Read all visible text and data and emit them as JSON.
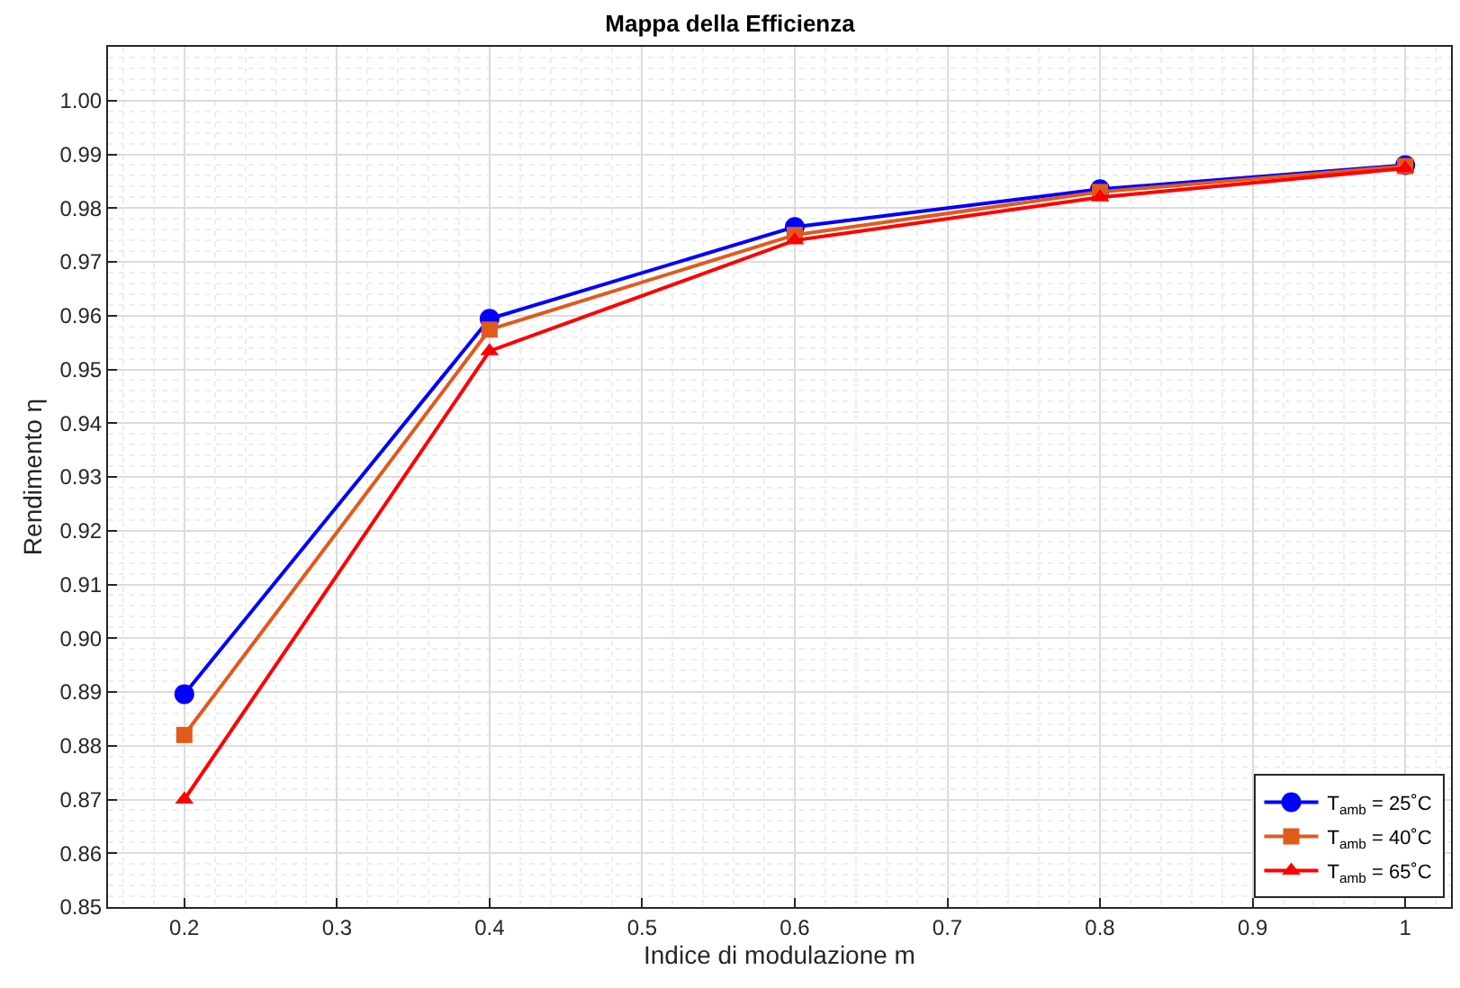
{
  "chart_data": {
    "type": "line",
    "title": "Mappa della Efficienza",
    "xlabel": "Indice di modulazione m",
    "ylabel": "Rendimento η",
    "x": [
      0.2,
      0.4,
      0.6,
      0.8,
      1.0
    ],
    "series": [
      {
        "name": "T$_{amb}$ = 25˚C",
        "color": "#0000ff",
        "marker": "circle",
        "values": [
          0.8896,
          0.9594,
          0.9765,
          0.9835,
          0.988
        ]
      },
      {
        "name": "T$_{amb}$ = 40˚C",
        "color": "#e05a1c",
        "marker": "square",
        "values": [
          0.882,
          0.9574,
          0.975,
          0.983,
          0.9878
        ]
      },
      {
        "name": "T$_{amb}$ = 65˚C",
        "color": "#ff0000",
        "marker": "triangle",
        "values": [
          0.87,
          0.9534,
          0.974,
          0.982,
          0.9874
        ]
      }
    ],
    "xlim": [
      0.15,
      1.03
    ],
    "xticks": [
      {
        "value": 0.2,
        "label": "0.2"
      },
      {
        "value": 0.3,
        "label": "0.3"
      },
      {
        "value": 0.4,
        "label": "0.4"
      },
      {
        "value": 0.5,
        "label": "0.5"
      },
      {
        "value": 0.6,
        "label": "0.6"
      },
      {
        "value": 0.7,
        "label": "0.7"
      },
      {
        "value": 0.8,
        "label": "0.8"
      },
      {
        "value": 0.9,
        "label": "0.9"
      },
      {
        "value": 1,
        "label": "1"
      }
    ],
    "ylim": [
      0.85,
      1.01
    ],
    "yticks": [
      {
        "value": 0.85,
        "label": "0.85"
      },
      {
        "value": 0.86,
        "label": "0.86"
      },
      {
        "value": 0.87,
        "label": "0.87"
      },
      {
        "value": 0.88,
        "label": "0.88"
      },
      {
        "value": 0.89,
        "label": "0.89"
      },
      {
        "value": 0.9,
        "label": "0.90"
      },
      {
        "value": 0.91,
        "label": "0.91"
      },
      {
        "value": 0.92,
        "label": "0.92"
      },
      {
        "value": 0.93,
        "label": "0.93"
      },
      {
        "value": 0.94,
        "label": "0.94"
      },
      {
        "value": 0.95,
        "label": "0.95"
      },
      {
        "value": 0.96,
        "label": "0.96"
      },
      {
        "value": 0.97,
        "label": "0.97"
      },
      {
        "value": 0.98,
        "label": "0.98"
      },
      {
        "value": 0.99,
        "label": "0.99"
      },
      {
        "value": 1.0,
        "label": "1.00"
      }
    ],
    "grid": true,
    "legend": "bottom right",
    "line_style": "solid"
  }
}
